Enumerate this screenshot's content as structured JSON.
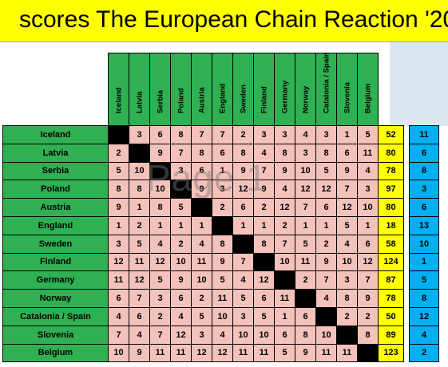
{
  "title": "scores The European Chain Reaction '20",
  "watermark": "Page 1",
  "columns": [
    "Iceland",
    "Latvia",
    "Serbia",
    "Poland",
    "Austria",
    "England",
    "Sweden",
    "Finland",
    "Germany",
    "Norway",
    "Catalonia / Spain",
    "Slovenia",
    "Belgium"
  ],
  "rows": [
    {
      "name": "Iceland",
      "scores": [
        "",
        "3",
        "6",
        "8",
        "7",
        "7",
        "2",
        "3",
        "3",
        "4",
        "3",
        "1",
        "5"
      ],
      "total": "52",
      "rank": "11"
    },
    {
      "name": "Latvia",
      "scores": [
        "2",
        "",
        "9",
        "7",
        "8",
        "6",
        "8",
        "4",
        "8",
        "3",
        "8",
        "6",
        "11"
      ],
      "total": "80",
      "rank": "6"
    },
    {
      "name": "Serbia",
      "scores": [
        "5",
        "10",
        "",
        "3",
        "6",
        "1",
        "9",
        "7",
        "9",
        "10",
        "5",
        "9",
        "4"
      ],
      "total": "78",
      "rank": "8"
    },
    {
      "name": "Poland",
      "scores": [
        "8",
        "8",
        "10",
        "",
        "9",
        "3",
        "12",
        "9",
        "4",
        "12",
        "12",
        "7",
        "3"
      ],
      "total": "97",
      "rank": "3"
    },
    {
      "name": "Austria",
      "scores": [
        "9",
        "1",
        "8",
        "5",
        "",
        "2",
        "6",
        "2",
        "12",
        "7",
        "6",
        "12",
        "10"
      ],
      "total": "80",
      "rank": "6"
    },
    {
      "name": "England",
      "scores": [
        "1",
        "2",
        "1",
        "1",
        "1",
        "",
        "1",
        "1",
        "2",
        "1",
        "1",
        "5",
        "1"
      ],
      "total": "18",
      "rank": "13"
    },
    {
      "name": "Sweden",
      "scores": [
        "3",
        "5",
        "4",
        "2",
        "4",
        "8",
        "",
        "8",
        "7",
        "5",
        "2",
        "4",
        "6"
      ],
      "total": "58",
      "rank": "10"
    },
    {
      "name": "Finland",
      "scores": [
        "12",
        "11",
        "12",
        "10",
        "11",
        "9",
        "7",
        "",
        "10",
        "11",
        "9",
        "10",
        "12"
      ],
      "total": "124",
      "rank": "1"
    },
    {
      "name": "Germany",
      "scores": [
        "11",
        "12",
        "5",
        "9",
        "10",
        "5",
        "4",
        "12",
        "",
        "2",
        "7",
        "3",
        "7"
      ],
      "total": "87",
      "rank": "5"
    },
    {
      "name": "Norway",
      "scores": [
        "6",
        "7",
        "3",
        "6",
        "2",
        "11",
        "5",
        "6",
        "11",
        "",
        "4",
        "8",
        "9"
      ],
      "total": "78",
      "rank": "8"
    },
    {
      "name": "Catalonia / Spain",
      "scores": [
        "4",
        "6",
        "2",
        "4",
        "5",
        "10",
        "3",
        "5",
        "1",
        "6",
        "",
        "2",
        "2"
      ],
      "total": "50",
      "rank": "12"
    },
    {
      "name": "Slovenia",
      "scores": [
        "7",
        "4",
        "7",
        "12",
        "3",
        "4",
        "10",
        "10",
        "6",
        "8",
        "10",
        "",
        "8"
      ],
      "total": "89",
      "rank": "4"
    },
    {
      "name": "Belgium",
      "scores": [
        "10",
        "9",
        "11",
        "11",
        "12",
        "12",
        "11",
        "11",
        "5",
        "9",
        "11",
        "11",
        ""
      ],
      "total": "123",
      "rank": "2"
    }
  ]
}
